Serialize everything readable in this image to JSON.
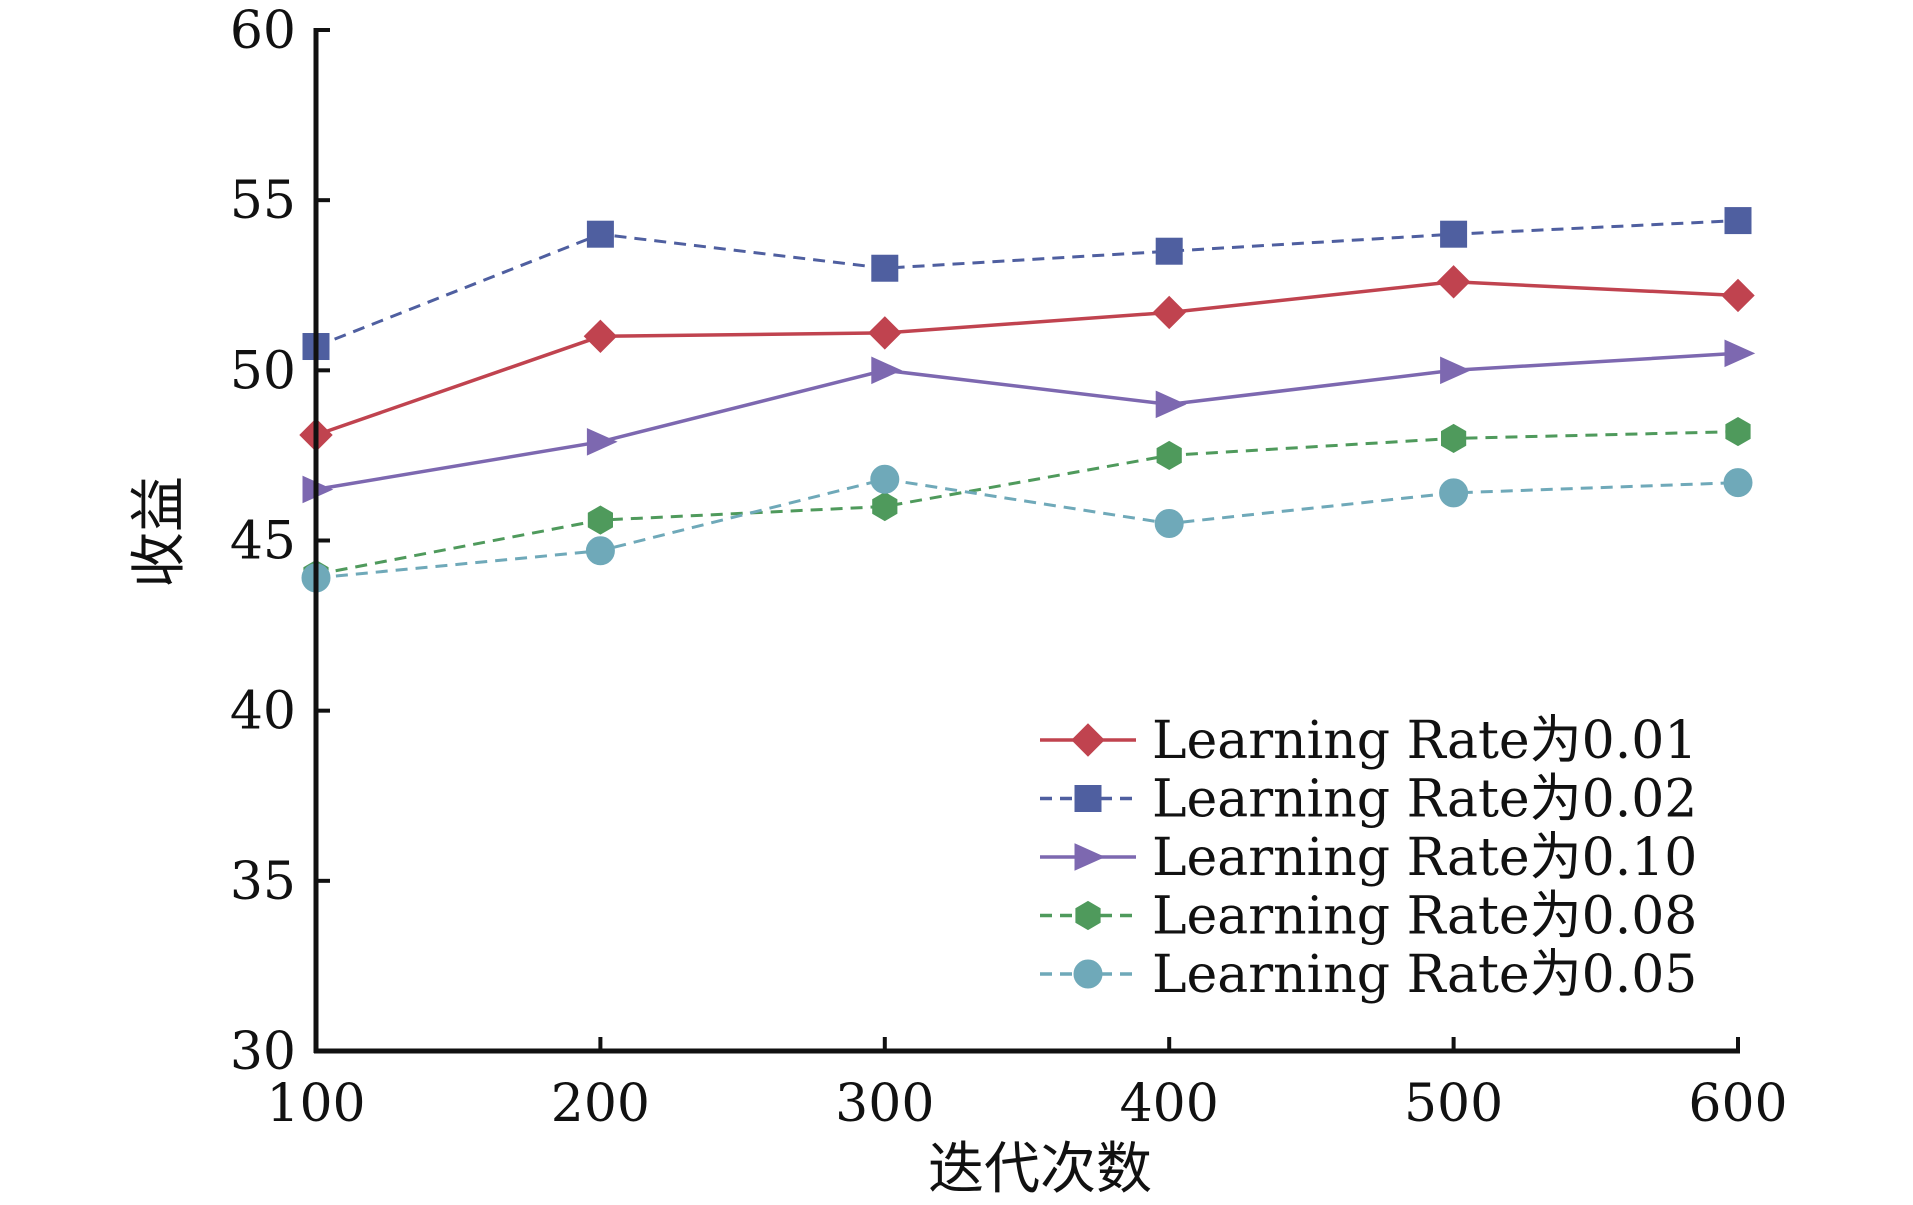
{
  "chart_data": {
    "type": "line",
    "title": "",
    "xlabel": "迭代次数",
    "ylabel": "收益",
    "x": [
      100,
      200,
      300,
      400,
      500,
      600
    ],
    "xlim": [
      100,
      600
    ],
    "ylim": [
      30,
      60
    ],
    "xticks": [
      "100",
      "200",
      "300",
      "400",
      "500",
      "600"
    ],
    "yticks": [
      "30",
      "35",
      "40",
      "45",
      "50",
      "55",
      "60"
    ],
    "grid": false,
    "legend_position": "bottom-right",
    "series": [
      {
        "name": "Learning Rate为0.01",
        "values": [
          48.1,
          51.0,
          51.1,
          51.7,
          52.6,
          52.2
        ],
        "color": "#c0434f",
        "marker": "diamond",
        "dash": "solid"
      },
      {
        "name": "Learning Rate为0.02",
        "values": [
          50.7,
          54.0,
          53.0,
          53.5,
          54.0,
          54.4
        ],
        "color": "#4f5fa0",
        "marker": "square",
        "dash": "dashed"
      },
      {
        "name": "Learning Rate为0.10",
        "values": [
          46.5,
          47.9,
          50.0,
          49.0,
          50.0,
          50.5
        ],
        "color": "#7d68b0",
        "marker": "triangle-right",
        "dash": "solid"
      },
      {
        "name": "Learning Rate为0.08",
        "values": [
          44.0,
          45.6,
          46.0,
          47.5,
          48.0,
          48.2
        ],
        "color": "#4f9a5c",
        "marker": "hexagon",
        "dash": "dashed"
      },
      {
        "name": "Learning Rate为0.05",
        "values": [
          43.9,
          44.7,
          46.8,
          45.5,
          46.4,
          46.7
        ],
        "color": "#6fa9b9",
        "marker": "circle",
        "dash": "dashed"
      }
    ]
  }
}
